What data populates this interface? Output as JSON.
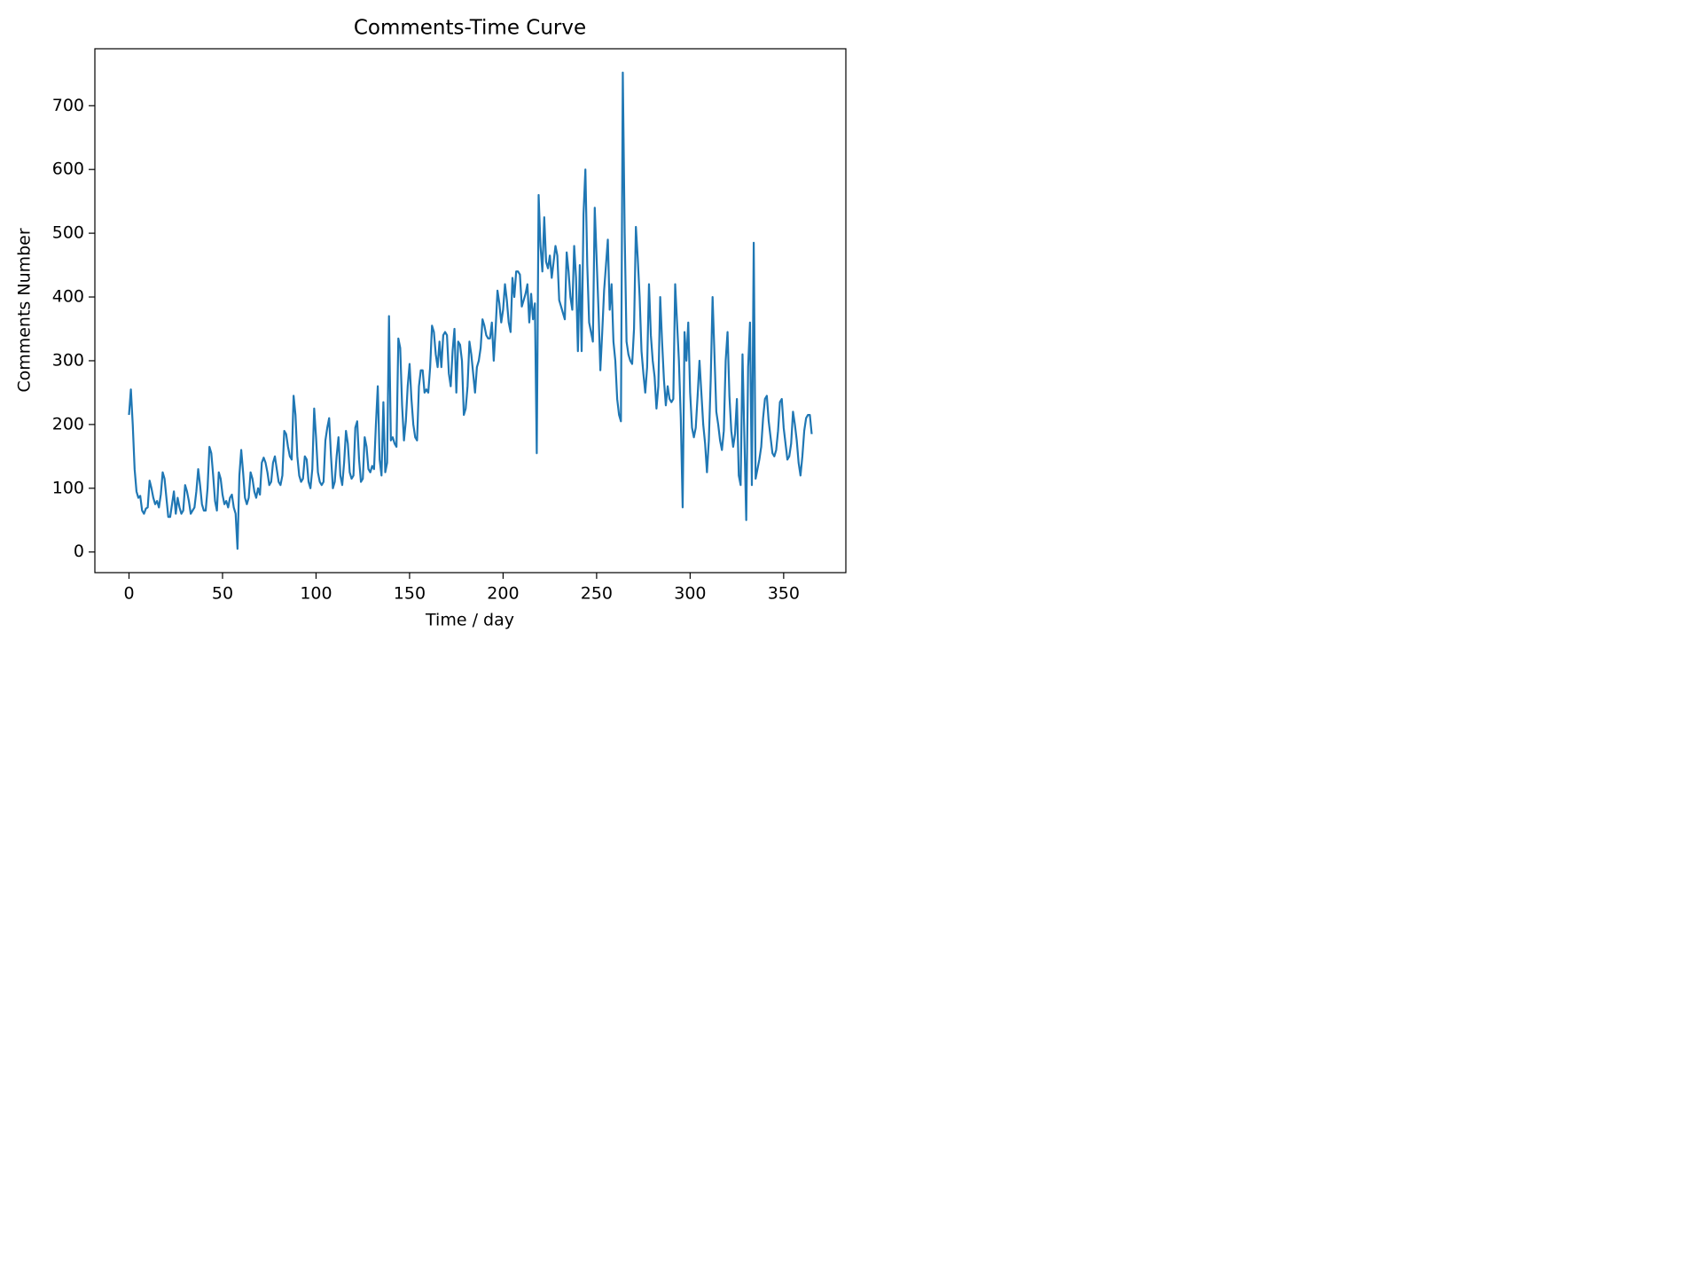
{
  "chart_data": {
    "type": "line",
    "title": "Comments-Time Curve",
    "x_label": "Time / day",
    "y_label": "Comments Number",
    "color": "#1f77b4",
    "xlim": [
      -18.25,
      383.25
    ],
    "ylim": [
      -32.35,
      789.35
    ],
    "xticks": [
      0,
      50,
      100,
      150,
      200,
      250,
      300,
      350
    ],
    "yticks": [
      0,
      100,
      200,
      300,
      400,
      500,
      600,
      700
    ],
    "x": [
      0,
      1,
      2,
      3,
      4,
      5,
      6,
      7,
      8,
      9,
      10,
      11,
      12,
      13,
      14,
      15,
      16,
      17,
      18,
      19,
      20,
      21,
      22,
      23,
      24,
      25,
      26,
      27,
      28,
      29,
      30,
      31,
      32,
      33,
      34,
      35,
      36,
      37,
      38,
      39,
      40,
      41,
      42,
      43,
      44,
      45,
      46,
      47,
      48,
      49,
      50,
      51,
      52,
      53,
      54,
      55,
      56,
      57,
      58,
      59,
      60,
      61,
      62,
      63,
      64,
      65,
      66,
      67,
      68,
      69,
      70,
      71,
      72,
      73,
      74,
      75,
      76,
      77,
      78,
      79,
      80,
      81,
      82,
      83,
      84,
      85,
      86,
      87,
      88,
      89,
      90,
      91,
      92,
      93,
      94,
      95,
      96,
      97,
      98,
      99,
      100,
      101,
      102,
      103,
      104,
      105,
      106,
      107,
      108,
      109,
      110,
      111,
      112,
      113,
      114,
      115,
      116,
      117,
      118,
      119,
      120,
      121,
      122,
      123,
      124,
      125,
      126,
      127,
      128,
      129,
      130,
      131,
      132,
      133,
      134,
      135,
      136,
      137,
      138,
      139,
      140,
      141,
      142,
      143,
      144,
      145,
      146,
      147,
      148,
      149,
      150,
      151,
      152,
      153,
      154,
      155,
      156,
      157,
      158,
      159,
      160,
      161,
      162,
      163,
      164,
      165,
      166,
      167,
      168,
      169,
      170,
      171,
      172,
      173,
      174,
      175,
      176,
      177,
      178,
      179,
      180,
      181,
      182,
      183,
      184,
      185,
      186,
      187,
      188,
      189,
      190,
      191,
      192,
      193,
      194,
      195,
      196,
      197,
      198,
      199,
      200,
      201,
      202,
      203,
      204,
      205,
      206,
      207,
      208,
      209,
      210,
      211,
      212,
      213,
      214,
      215,
      216,
      217,
      218,
      219,
      220,
      221,
      222,
      223,
      224,
      225,
      226,
      227,
      228,
      229,
      230,
      231,
      232,
      233,
      234,
      235,
      236,
      237,
      238,
      239,
      240,
      241,
      242,
      243,
      244,
      245,
      246,
      247,
      248,
      249,
      250,
      251,
      252,
      253,
      254,
      255,
      256,
      257,
      258,
      259,
      260,
      261,
      262,
      263,
      264,
      265,
      266,
      267,
      268,
      269,
      270,
      271,
      272,
      273,
      274,
      275,
      276,
      277,
      278,
      279,
      280,
      281,
      282,
      283,
      284,
      285,
      286,
      287,
      288,
      289,
      290,
      291,
      292,
      293,
      294,
      295,
      296,
      297,
      298,
      299,
      300,
      301,
      302,
      303,
      304,
      305,
      306,
      307,
      308,
      309,
      310,
      311,
      312,
      313,
      314,
      315,
      316,
      317,
      318,
      319,
      320,
      321,
      322,
      323,
      324,
      325,
      326,
      327,
      328,
      329,
      330,
      331,
      332,
      333,
      334,
      335,
      336,
      337,
      338,
      339,
      340,
      341,
      342,
      343,
      344,
      345,
      346,
      347,
      348,
      349,
      350,
      351,
      352,
      353,
      354,
      355,
      356,
      357,
      358,
      359,
      360,
      361,
      362,
      363,
      364,
      365
    ],
    "values": [
      215,
      255,
      200,
      130,
      95,
      85,
      88,
      65,
      60,
      68,
      70,
      112,
      100,
      85,
      75,
      80,
      70,
      90,
      125,
      115,
      85,
      55,
      55,
      75,
      95,
      60,
      85,
      70,
      60,
      65,
      105,
      95,
      80,
      60,
      65,
      70,
      95,
      130,
      105,
      75,
      65,
      65,
      100,
      165,
      155,
      120,
      80,
      65,
      125,
      115,
      90,
      75,
      80,
      70,
      85,
      90,
      70,
      60,
      5,
      120,
      160,
      125,
      85,
      75,
      85,
      125,
      115,
      95,
      85,
      100,
      90,
      140,
      148,
      140,
      125,
      105,
      110,
      140,
      150,
      130,
      110,
      105,
      120,
      190,
      185,
      165,
      150,
      145,
      245,
      215,
      150,
      120,
      110,
      115,
      150,
      145,
      110,
      100,
      130,
      225,
      180,
      125,
      110,
      105,
      110,
      175,
      195,
      210,
      150,
      100,
      110,
      150,
      180,
      120,
      105,
      140,
      190,
      170,
      125,
      115,
      120,
      195,
      205,
      145,
      110,
      115,
      180,
      165,
      130,
      125,
      135,
      130,
      200,
      260,
      145,
      120,
      235,
      125,
      140,
      370,
      175,
      180,
      170,
      165,
      335,
      320,
      230,
      175,
      205,
      260,
      295,
      240,
      200,
      180,
      175,
      260,
      285,
      285,
      250,
      255,
      250,
      290,
      355,
      345,
      310,
      290,
      330,
      290,
      340,
      345,
      340,
      280,
      260,
      315,
      350,
      250,
      330,
      325,
      300,
      215,
      225,
      260,
      330,
      310,
      280,
      250,
      290,
      300,
      320,
      365,
      355,
      340,
      335,
      335,
      360,
      300,
      350,
      410,
      390,
      360,
      380,
      420,
      395,
      360,
      345,
      430,
      400,
      440,
      440,
      435,
      385,
      395,
      405,
      420,
      360,
      405,
      365,
      390,
      155,
      560,
      480,
      440,
      525,
      455,
      445,
      465,
      430,
      455,
      480,
      465,
      395,
      385,
      375,
      365,
      470,
      440,
      400,
      380,
      480,
      430,
      315,
      450,
      315,
      530,
      600,
      450,
      360,
      345,
      330,
      540,
      460,
      380,
      285,
      345,
      410,
      450,
      490,
      380,
      420,
      330,
      300,
      240,
      215,
      205,
      752,
      500,
      330,
      310,
      300,
      295,
      350,
      510,
      460,
      400,
      315,
      280,
      250,
      290,
      420,
      340,
      300,
      275,
      225,
      260,
      400,
      330,
      270,
      230,
      260,
      240,
      235,
      240,
      420,
      360,
      300,
      210,
      70,
      345,
      300,
      360,
      250,
      195,
      180,
      195,
      245,
      300,
      250,
      200,
      170,
      125,
      175,
      270,
      400,
      310,
      220,
      200,
      175,
      160,
      190,
      300,
      345,
      245,
      190,
      165,
      185,
      240,
      120,
      105,
      310,
      180,
      50,
      290,
      360,
      105,
      485,
      115,
      130,
      145,
      165,
      210,
      240,
      245,
      205,
      180,
      155,
      150,
      160,
      190,
      235,
      240,
      195,
      170,
      145,
      150,
      170,
      220,
      200,
      175,
      140,
      120,
      150,
      190,
      210,
      215,
      215,
      185
    ]
  }
}
